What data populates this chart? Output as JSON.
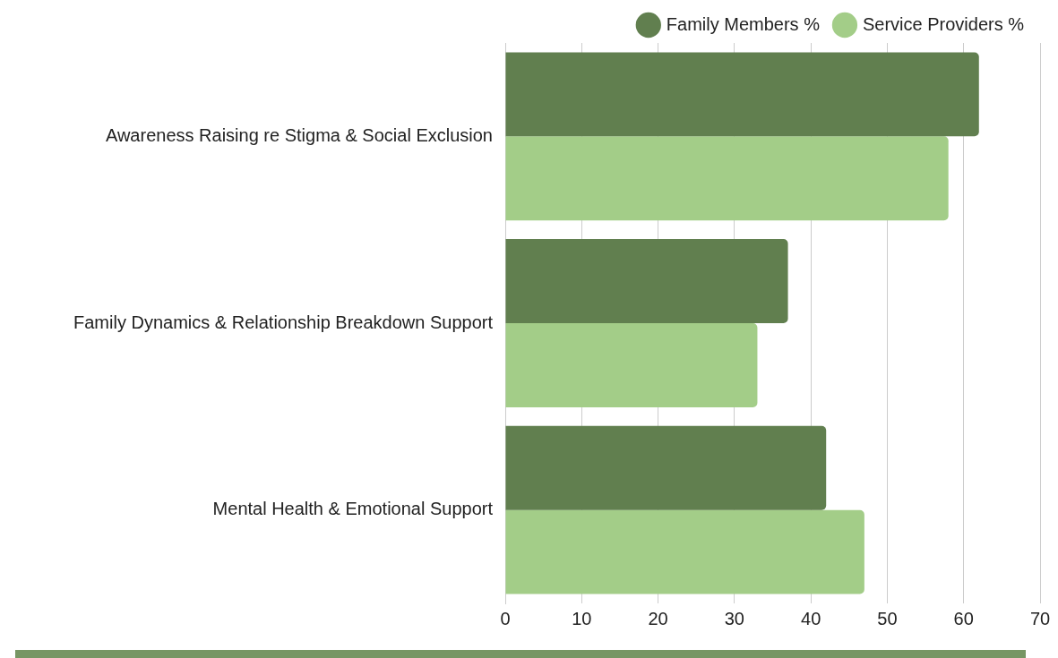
{
  "chart_data": {
    "type": "bar",
    "orientation": "horizontal",
    "categories": [
      "Awareness Raising re Stigma & Social Exclusion",
      "Family Dynamics & Relationship Breakdown Support",
      "Mental Health & Emotional Support"
    ],
    "series": [
      {
        "name": "Family Members %",
        "color": "#617f4f",
        "values": [
          62,
          37,
          42
        ]
      },
      {
        "name": "Service Providers %",
        "color": "#a3cd88",
        "values": [
          58,
          33,
          47
        ]
      }
    ],
    "xlim": [
      0,
      70
    ],
    "xticks": [
      0,
      10,
      20,
      30,
      40,
      50,
      60,
      70
    ],
    "grid": "x",
    "legend": "top right"
  }
}
